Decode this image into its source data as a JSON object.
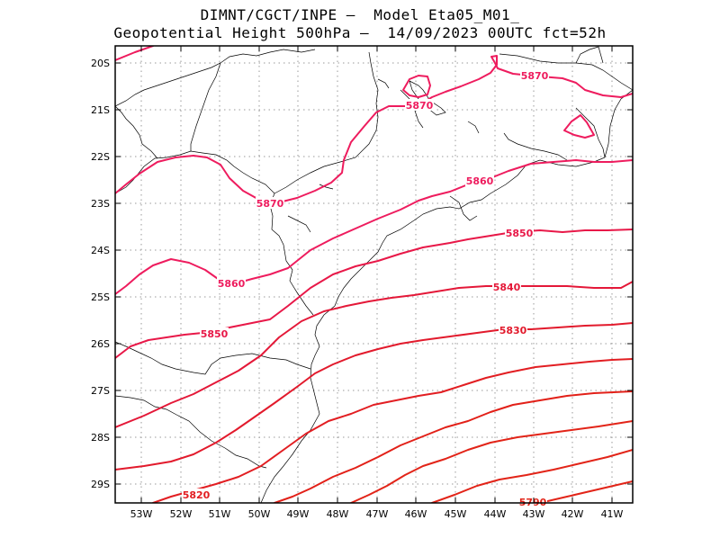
{
  "title_line1": "DIMNT/CGCT/INPE –  Model Eta05_M01_",
  "title_line2": "Geopotential Height 500hPa –  14/09/2023 00UTC fct=52h",
  "map": {
    "lon_labels": [
      "53W",
      "52W",
      "51W",
      "50W",
      "49W",
      "48W",
      "47W",
      "46W",
      "45W",
      "44W",
      "43W",
      "42W",
      "41W"
    ],
    "lat_labels": [
      "20S",
      "21S",
      "22S",
      "23S",
      "24S",
      "25S",
      "26S",
      "27S",
      "28S",
      "29S"
    ],
    "grid": true
  },
  "contours": [
    {
      "level": 5870,
      "label": "5870",
      "color": "#ee1c5e"
    },
    {
      "level": 5860,
      "label": "5860",
      "color": "#ee1c5e"
    },
    {
      "level": 5850,
      "label": "5850",
      "color": "#e81848"
    },
    {
      "level": 5840,
      "label": "5840",
      "color": "#e41838"
    },
    {
      "level": 5830,
      "label": "5830",
      "color": "#e21a2c"
    },
    {
      "level": 5820,
      "label": "5820",
      "color": "#e21e22"
    },
    {
      "level": 5790,
      "label": "5790",
      "color": "#e22418"
    }
  ]
}
